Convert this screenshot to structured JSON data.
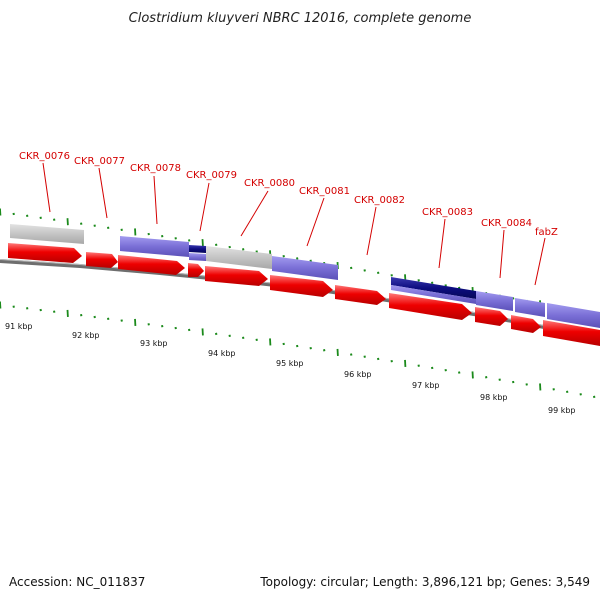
{
  "title": "Clostridium kluyveri NBRC 12016, complete genome",
  "gene_labels": [
    "CKR_0076",
    "CKR_0077",
    "CKR_0078",
    "CKR_0079",
    "CKR_0080",
    "CKR_0081",
    "CKR_0082",
    "CKR_0083",
    "CKR_0084",
    "fabZ"
  ],
  "scale_labels": [
    "91 kbp",
    "92 kbp",
    "93 kbp",
    "94 kbp",
    "95 kbp",
    "96 kbp",
    "97 kbp",
    "98 kbp",
    "99 kbp"
  ],
  "footer": {
    "accession": "Accession: NC_011837",
    "summary": "Topology: circular; Length: 3,896,121 bp; Genes: 3,549"
  },
  "colors": {
    "forward_cds": "#ee0000",
    "reverse_cds": "#7a6fd6",
    "reverse_dark": "#0d0d80",
    "other_feature": "#bdbdbd",
    "tick_marks": "#1b8a1b",
    "backbone": "#8a8a8a",
    "label_text": "#d40000"
  }
}
